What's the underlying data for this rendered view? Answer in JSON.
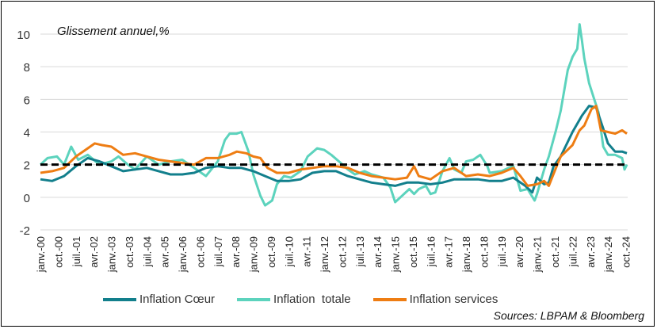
{
  "chart_data": {
    "type": "line",
    "subtitle": "Glissement annuel,%",
    "source": "Sources: LBPAM & Bloomberg",
    "ylim": [
      -2,
      10
    ],
    "yticks": [
      -2,
      0,
      2,
      4,
      6,
      8,
      10
    ],
    "xlim": [
      2000.0,
      2024.833
    ],
    "xticks": [
      "janv.-00",
      "oct.-00",
      "juil.-01",
      "avr.-02",
      "janv.-03",
      "oct.-03",
      "juil.-04",
      "avr.-05",
      "janv.-06",
      "oct.-06",
      "juil.-07",
      "avr.-08",
      "janv.-09",
      "oct.-09",
      "juil.-10",
      "avr.-11",
      "janv.-12",
      "oct.-12",
      "juil.-13",
      "avr.-14",
      "janv.-15",
      "oct.-15",
      "juil.-16",
      "avr.-17",
      "janv.-18",
      "oct.-18",
      "juil.-19",
      "avr.-20",
      "janv.-21",
      "oct.-21",
      "juil.-22",
      "avr.-23",
      "janv.-24",
      "oct.-24"
    ],
    "reference_line": {
      "y": 2,
      "style": "dashed",
      "color": "#000000"
    },
    "grid": "horizontal",
    "legend_position": "bottom",
    "series": [
      {
        "name": "Inflation Cœur",
        "color": "#127f8c",
        "points": [
          [
            2000.0,
            1.1
          ],
          [
            2000.5,
            1.0
          ],
          [
            2001.0,
            1.3
          ],
          [
            2001.5,
            1.9
          ],
          [
            2002.0,
            2.4
          ],
          [
            2002.5,
            2.2
          ],
          [
            2003.0,
            1.9
          ],
          [
            2003.5,
            1.6
          ],
          [
            2004.0,
            1.7
          ],
          [
            2004.5,
            1.8
          ],
          [
            2005.0,
            1.6
          ],
          [
            2005.5,
            1.4
          ],
          [
            2006.0,
            1.4
          ],
          [
            2006.5,
            1.5
          ],
          [
            2007.0,
            1.8
          ],
          [
            2007.5,
            1.9
          ],
          [
            2008.0,
            1.8
          ],
          [
            2008.5,
            1.8
          ],
          [
            2009.0,
            1.6
          ],
          [
            2009.5,
            1.3
          ],
          [
            2010.0,
            1.0
          ],
          [
            2010.5,
            1.0
          ],
          [
            2011.0,
            1.1
          ],
          [
            2011.5,
            1.5
          ],
          [
            2012.0,
            1.6
          ],
          [
            2012.5,
            1.6
          ],
          [
            2013.0,
            1.3
          ],
          [
            2013.5,
            1.1
          ],
          [
            2014.0,
            0.9
          ],
          [
            2014.5,
            0.8
          ],
          [
            2015.0,
            0.7
          ],
          [
            2015.5,
            0.9
          ],
          [
            2016.0,
            0.9
          ],
          [
            2016.5,
            0.8
          ],
          [
            2017.0,
            0.9
          ],
          [
            2017.5,
            1.1
          ],
          [
            2018.0,
            1.1
          ],
          [
            2018.5,
            1.1
          ],
          [
            2019.0,
            1.0
          ],
          [
            2019.5,
            1.0
          ],
          [
            2020.0,
            1.2
          ],
          [
            2020.5,
            0.7
          ],
          [
            2020.8,
            0.3
          ],
          [
            2021.0,
            1.2
          ],
          [
            2021.3,
            0.8
          ],
          [
            2021.5,
            0.9
          ],
          [
            2021.7,
            1.9
          ],
          [
            2022.0,
            2.5
          ],
          [
            2022.5,
            4.0
          ],
          [
            2022.9,
            5.0
          ],
          [
            2023.2,
            5.6
          ],
          [
            2023.5,
            5.5
          ],
          [
            2023.8,
            4.2
          ],
          [
            2024.0,
            3.3
          ],
          [
            2024.3,
            2.8
          ],
          [
            2024.6,
            2.8
          ],
          [
            2024.8,
            2.7
          ]
        ]
      },
      {
        "name": "Inflation  totale",
        "color": "#5cd3bd",
        "points": [
          [
            2000.0,
            2.0
          ],
          [
            2000.3,
            2.4
          ],
          [
            2000.7,
            2.5
          ],
          [
            2001.0,
            2.0
          ],
          [
            2001.3,
            3.1
          ],
          [
            2001.6,
            2.3
          ],
          [
            2002.0,
            2.6
          ],
          [
            2002.5,
            2.0
          ],
          [
            2003.0,
            2.2
          ],
          [
            2003.3,
            2.5
          ],
          [
            2003.7,
            2.0
          ],
          [
            2004.0,
            1.7
          ],
          [
            2004.5,
            2.5
          ],
          [
            2005.0,
            2.0
          ],
          [
            2005.5,
            2.2
          ],
          [
            2006.0,
            2.3
          ],
          [
            2006.5,
            1.8
          ],
          [
            2007.0,
            1.3
          ],
          [
            2007.5,
            2.2
          ],
          [
            2007.8,
            3.5
          ],
          [
            2008.0,
            3.9
          ],
          [
            2008.3,
            3.9
          ],
          [
            2008.5,
            4.0
          ],
          [
            2008.8,
            2.8
          ],
          [
            2009.0,
            1.4
          ],
          [
            2009.3,
            0.1
          ],
          [
            2009.5,
            -0.5
          ],
          [
            2009.8,
            -0.2
          ],
          [
            2010.0,
            0.8
          ],
          [
            2010.3,
            1.3
          ],
          [
            2010.6,
            1.2
          ],
          [
            2011.0,
            1.6
          ],
          [
            2011.3,
            2.5
          ],
          [
            2011.7,
            3.0
          ],
          [
            2012.0,
            2.9
          ],
          [
            2012.3,
            2.6
          ],
          [
            2012.7,
            2.1
          ],
          [
            2013.0,
            1.7
          ],
          [
            2013.3,
            1.4
          ],
          [
            2013.7,
            1.6
          ],
          [
            2014.0,
            1.4
          ],
          [
            2014.5,
            1.2
          ],
          [
            2014.8,
            0.6
          ],
          [
            2015.0,
            -0.3
          ],
          [
            2015.3,
            0.1
          ],
          [
            2015.6,
            0.5
          ],
          [
            2015.8,
            0.2
          ],
          [
            2016.0,
            0.5
          ],
          [
            2016.3,
            0.7
          ],
          [
            2016.5,
            0.2
          ],
          [
            2016.7,
            0.3
          ],
          [
            2017.0,
            1.6
          ],
          [
            2017.3,
            2.4
          ],
          [
            2017.5,
            1.7
          ],
          [
            2017.8,
            1.5
          ],
          [
            2018.0,
            2.2
          ],
          [
            2018.3,
            2.3
          ],
          [
            2018.6,
            2.6
          ],
          [
            2018.9,
            1.9
          ],
          [
            2019.0,
            1.5
          ],
          [
            2019.5,
            1.6
          ],
          [
            2019.8,
            1.8
          ],
          [
            2020.0,
            1.9
          ],
          [
            2020.3,
            0.4
          ],
          [
            2020.6,
            0.5
          ],
          [
            2020.9,
            -0.2
          ],
          [
            2021.0,
            0.2
          ],
          [
            2021.3,
            1.7
          ],
          [
            2021.5,
            2.5
          ],
          [
            2021.8,
            4.1
          ],
          [
            2022.0,
            5.3
          ],
          [
            2022.3,
            7.8
          ],
          [
            2022.5,
            8.6
          ],
          [
            2022.7,
            9.1
          ],
          [
            2022.8,
            10.6
          ],
          [
            2022.9,
            9.6
          ],
          [
            2023.0,
            8.5
          ],
          [
            2023.2,
            7.0
          ],
          [
            2023.4,
            6.1
          ],
          [
            2023.6,
            5.2
          ],
          [
            2023.8,
            3.1
          ],
          [
            2024.0,
            2.6
          ],
          [
            2024.3,
            2.6
          ],
          [
            2024.6,
            2.4
          ],
          [
            2024.7,
            1.7
          ],
          [
            2024.8,
            2.0
          ]
        ]
      },
      {
        "name": "Inflation services",
        "color": "#ee7d13",
        "points": [
          [
            2000.0,
            1.5
          ],
          [
            2000.5,
            1.6
          ],
          [
            2001.0,
            1.8
          ],
          [
            2001.5,
            2.5
          ],
          [
            2002.0,
            3.0
          ],
          [
            2002.3,
            3.3
          ],
          [
            2002.6,
            3.2
          ],
          [
            2003.0,
            3.1
          ],
          [
            2003.5,
            2.6
          ],
          [
            2004.0,
            2.7
          ],
          [
            2004.5,
            2.5
          ],
          [
            2005.0,
            2.3
          ],
          [
            2005.5,
            2.2
          ],
          [
            2006.0,
            2.1
          ],
          [
            2006.5,
            2.0
          ],
          [
            2007.0,
            2.4
          ],
          [
            2007.5,
            2.4
          ],
          [
            2008.0,
            2.6
          ],
          [
            2008.3,
            2.8
          ],
          [
            2008.7,
            2.7
          ],
          [
            2009.0,
            2.5
          ],
          [
            2009.3,
            2.4
          ],
          [
            2009.6,
            1.8
          ],
          [
            2010.0,
            1.5
          ],
          [
            2010.5,
            1.5
          ],
          [
            2011.0,
            1.7
          ],
          [
            2011.5,
            1.8
          ],
          [
            2012.0,
            1.9
          ],
          [
            2012.5,
            1.9
          ],
          [
            2013.0,
            1.8
          ],
          [
            2013.5,
            1.5
          ],
          [
            2014.0,
            1.3
          ],
          [
            2014.5,
            1.2
          ],
          [
            2015.0,
            1.1
          ],
          [
            2015.5,
            1.2
          ],
          [
            2015.8,
            1.9
          ],
          [
            2016.0,
            1.3
          ],
          [
            2016.5,
            1.1
          ],
          [
            2017.0,
            1.6
          ],
          [
            2017.5,
            1.8
          ],
          [
            2018.0,
            1.3
          ],
          [
            2018.5,
            1.4
          ],
          [
            2019.0,
            1.3
          ],
          [
            2019.5,
            1.5
          ],
          [
            2020.0,
            1.8
          ],
          [
            2020.3,
            1.3
          ],
          [
            2020.6,
            0.7
          ],
          [
            2021.0,
            0.8
          ],
          [
            2021.3,
            1.0
          ],
          [
            2021.5,
            0.7
          ],
          [
            2021.8,
            1.8
          ],
          [
            2022.0,
            2.5
          ],
          [
            2022.5,
            3.2
          ],
          [
            2022.8,
            4.1
          ],
          [
            2023.0,
            4.4
          ],
          [
            2023.3,
            5.4
          ],
          [
            2023.5,
            5.6
          ],
          [
            2023.7,
            4.1
          ],
          [
            2024.0,
            4.0
          ],
          [
            2024.3,
            3.9
          ],
          [
            2024.6,
            4.1
          ],
          [
            2024.8,
            3.9
          ]
        ]
      }
    ]
  }
}
